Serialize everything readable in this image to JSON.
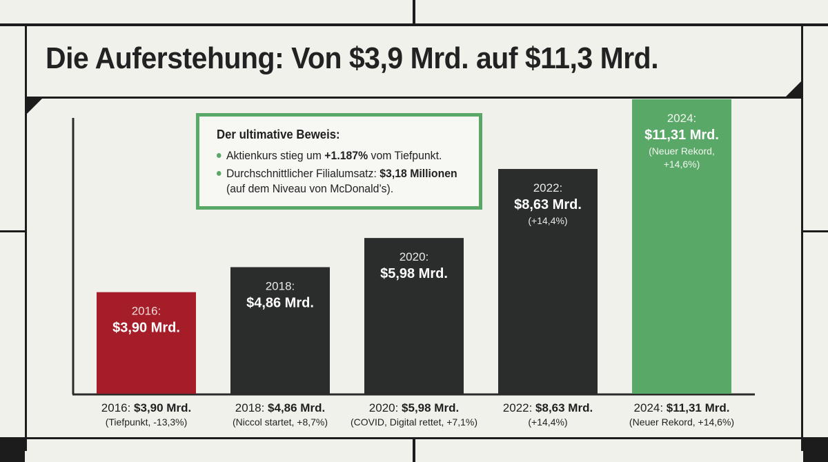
{
  "title": "Die Auferstehung: Von $3,9 Mrd. auf $11,3 Mrd.",
  "colors": {
    "accent_green": "#5aa867",
    "bar_dark": "#2b2d2c",
    "bar_red": "#a51d28",
    "background": "#f1f1ec"
  },
  "callout": {
    "title": "Der ultimative Beweis:",
    "items": [
      {
        "prefix": "Aktienkurs stieg um ",
        "bold": "+1.187%",
        "suffix": " vom Tiefpunkt.",
        "sub": ""
      },
      {
        "prefix": "Durchschnittlicher Filialumsatz: ",
        "bold": "$3,18 Millionen",
        "suffix": "",
        "sub": "(auf dem Niveau von McDonald’s)."
      }
    ]
  },
  "chart_data": {
    "type": "bar",
    "title": "Die Auferstehung: Von $3,9 Mrd. auf $11,3 Mrd.",
    "categories": [
      "2016",
      "2018",
      "2020",
      "2022",
      "2024"
    ],
    "values": [
      3.9,
      4.86,
      5.98,
      8.63,
      11.31
    ],
    "unit": "Mrd. $",
    "ylim": [
      0,
      13
    ],
    "grid": false,
    "bar_colors": [
      "#a51d28",
      "#2b2d2c",
      "#2b2d2c",
      "#2b2d2c",
      "#5aa867"
    ],
    "bar_labels": [
      {
        "year": "2016:",
        "value": "$3,90 Mrd.",
        "note": ""
      },
      {
        "year": "2018:",
        "value": "$4,86 Mrd.",
        "note": ""
      },
      {
        "year": "2020:",
        "value": "$5,98 Mrd.",
        "note": ""
      },
      {
        "year": "2022:",
        "value": "$8,63 Mrd.",
        "note": "(+14,4%)"
      },
      {
        "year": "2024:",
        "value": "$11,31 Mrd.",
        "note": "(Neuer Rekord,\n+14,6%)"
      }
    ],
    "axis_labels": [
      {
        "prefix": "2016: ",
        "value": "$3,90 Mrd.",
        "note": "(Tiefpunkt, -13,3%)"
      },
      {
        "prefix": "2018: ",
        "value": "$4,86 Mrd.",
        "note": "(Niccol startet, +8,7%)"
      },
      {
        "prefix": "2020: ",
        "value": "$5,98 Mrd.",
        "note": "(COVID, Digital rettet, +7,1%)"
      },
      {
        "prefix": "2022: ",
        "value": "$8,63 Mrd.",
        "note": "(+14,4%)"
      },
      {
        "prefix": "2024: ",
        "value": "$11,31 Mrd.",
        "note": "(Neuer Rekord, +14,6%)"
      }
    ]
  }
}
